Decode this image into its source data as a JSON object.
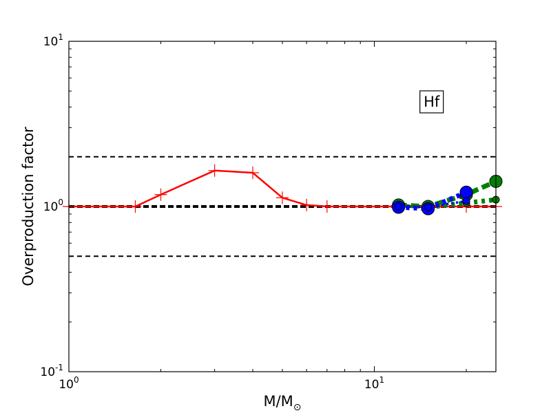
{
  "chart_data": {
    "type": "line",
    "title": "",
    "xlabel": "M/M",
    "xlabel_subscript": "⊙",
    "ylabel": "Overproduction factor",
    "xscale": "log",
    "yscale": "log",
    "xlim": [
      1,
      25
    ],
    "ylim": [
      0.1,
      10
    ],
    "x_ticks": [
      {
        "value": 1,
        "base": "10",
        "exp": "0"
      },
      {
        "value": 10,
        "base": "10",
        "exp": "1"
      }
    ],
    "y_ticks": [
      {
        "value": 0.1,
        "base": "10",
        "exp": "-1"
      },
      {
        "value": 1,
        "base": "10",
        "exp": "0"
      },
      {
        "value": 10,
        "base": "10",
        "exp": "1"
      }
    ],
    "grid": false,
    "legend": "none",
    "annotation": {
      "text": "Hf",
      "x": 15.4,
      "y": 4.3
    },
    "reference_lines": [
      {
        "y": 2.0,
        "style": "dashed",
        "color": "#000000",
        "width": "thin"
      },
      {
        "y": 1.0,
        "style": "dashed",
        "color": "#000000",
        "width": "thick"
      },
      {
        "y": 0.5,
        "style": "dashed",
        "color": "#000000",
        "width": "thin"
      }
    ],
    "series": [
      {
        "color": "#ff0000",
        "line": "solid",
        "marker": "plus",
        "x": [
          1.0,
          1.65,
          2.0,
          3.0,
          4.0,
          5.0,
          6.0,
          7.0,
          12.0,
          15.0,
          20.0,
          25.0
        ],
        "y": [
          1.0,
          1.0,
          1.18,
          1.65,
          1.6,
          1.13,
          1.02,
          1.0,
          1.0,
          1.0,
          1.0,
          1.0
        ]
      },
      {
        "color": "#008000",
        "line": "thick-dashed",
        "marker": "circle",
        "x": [
          12.0,
          15.0,
          20.0,
          25.0
        ],
        "y": [
          1.02,
          1.0,
          1.18,
          1.42
        ]
      },
      {
        "color": "#008000",
        "line": "thick-dotted",
        "marker": "circle-small",
        "x": [
          12.0,
          15.0,
          20.0,
          25.0
        ],
        "y": [
          1.0,
          0.99,
          1.05,
          1.1
        ]
      },
      {
        "color": "#0000ff",
        "line": "thick-dotted",
        "marker": "circle",
        "x": [
          12.0,
          15.0,
          20.0
        ],
        "y": [
          0.99,
          0.97,
          1.22
        ]
      },
      {
        "color": "#0000ff",
        "line": "dotted",
        "marker": "circle-small",
        "x": [
          12.0,
          15.0,
          20.0
        ],
        "y": [
          1.0,
          0.99,
          1.08
        ]
      }
    ]
  }
}
